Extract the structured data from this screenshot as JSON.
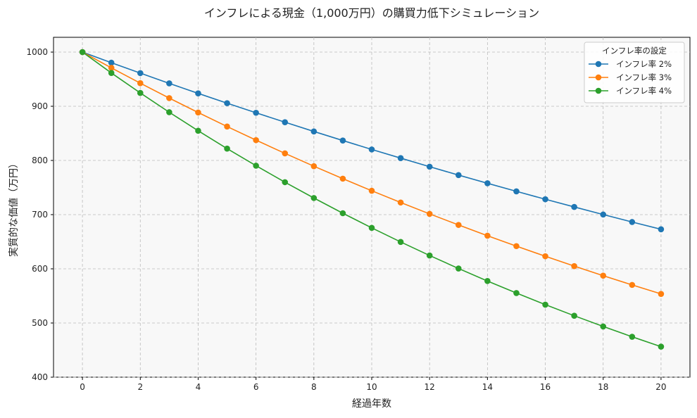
{
  "chart_data": {
    "type": "line",
    "title": "インフレによる現金（1,000万円）の購買力低下シミュレーション",
    "xlabel": "経過年数",
    "ylabel": "実質的な価値（万円）",
    "xlim": [
      -1,
      21
    ],
    "ylim": [
      400,
      1027.3
    ],
    "xticks": [
      0,
      2,
      4,
      6,
      8,
      10,
      12,
      14,
      16,
      18,
      20
    ],
    "yticks": [
      400,
      500,
      600,
      700,
      800,
      900,
      1000
    ],
    "grid": true,
    "legend": {
      "title": "インフレ率の設定",
      "placement": "top-right"
    },
    "x": [
      0,
      1,
      2,
      3,
      4,
      5,
      6,
      7,
      8,
      9,
      10,
      11,
      12,
      13,
      14,
      15,
      16,
      17,
      18,
      19,
      20
    ],
    "series": [
      {
        "name": "インフレ率 2%",
        "color": "#1f77b4",
        "values": [
          1000,
          980.4,
          961.2,
          942.3,
          923.8,
          905.7,
          888.0,
          870.6,
          853.5,
          836.8,
          820.3,
          804.3,
          788.5,
          773.0,
          757.9,
          743.0,
          728.4,
          714.2,
          700.2,
          686.4,
          673.0
        ]
      },
      {
        "name": "インフレ率 3%",
        "color": "#ff7f0e",
        "values": [
          1000,
          970.9,
          942.6,
          915.1,
          888.5,
          862.6,
          837.5,
          813.1,
          789.4,
          766.4,
          744.1,
          722.4,
          701.4,
          681.0,
          661.1,
          641.9,
          623.2,
          605.0,
          587.4,
          570.3,
          553.7
        ]
      },
      {
        "name": "インフレ率 4%",
        "color": "#2ca02c",
        "values": [
          1000,
          961.5,
          924.6,
          889.0,
          854.8,
          821.9,
          790.3,
          759.9,
          730.7,
          702.6,
          675.6,
          649.6,
          624.6,
          600.6,
          577.5,
          555.3,
          533.9,
          513.4,
          493.6,
          474.6,
          456.4
        ]
      }
    ]
  }
}
